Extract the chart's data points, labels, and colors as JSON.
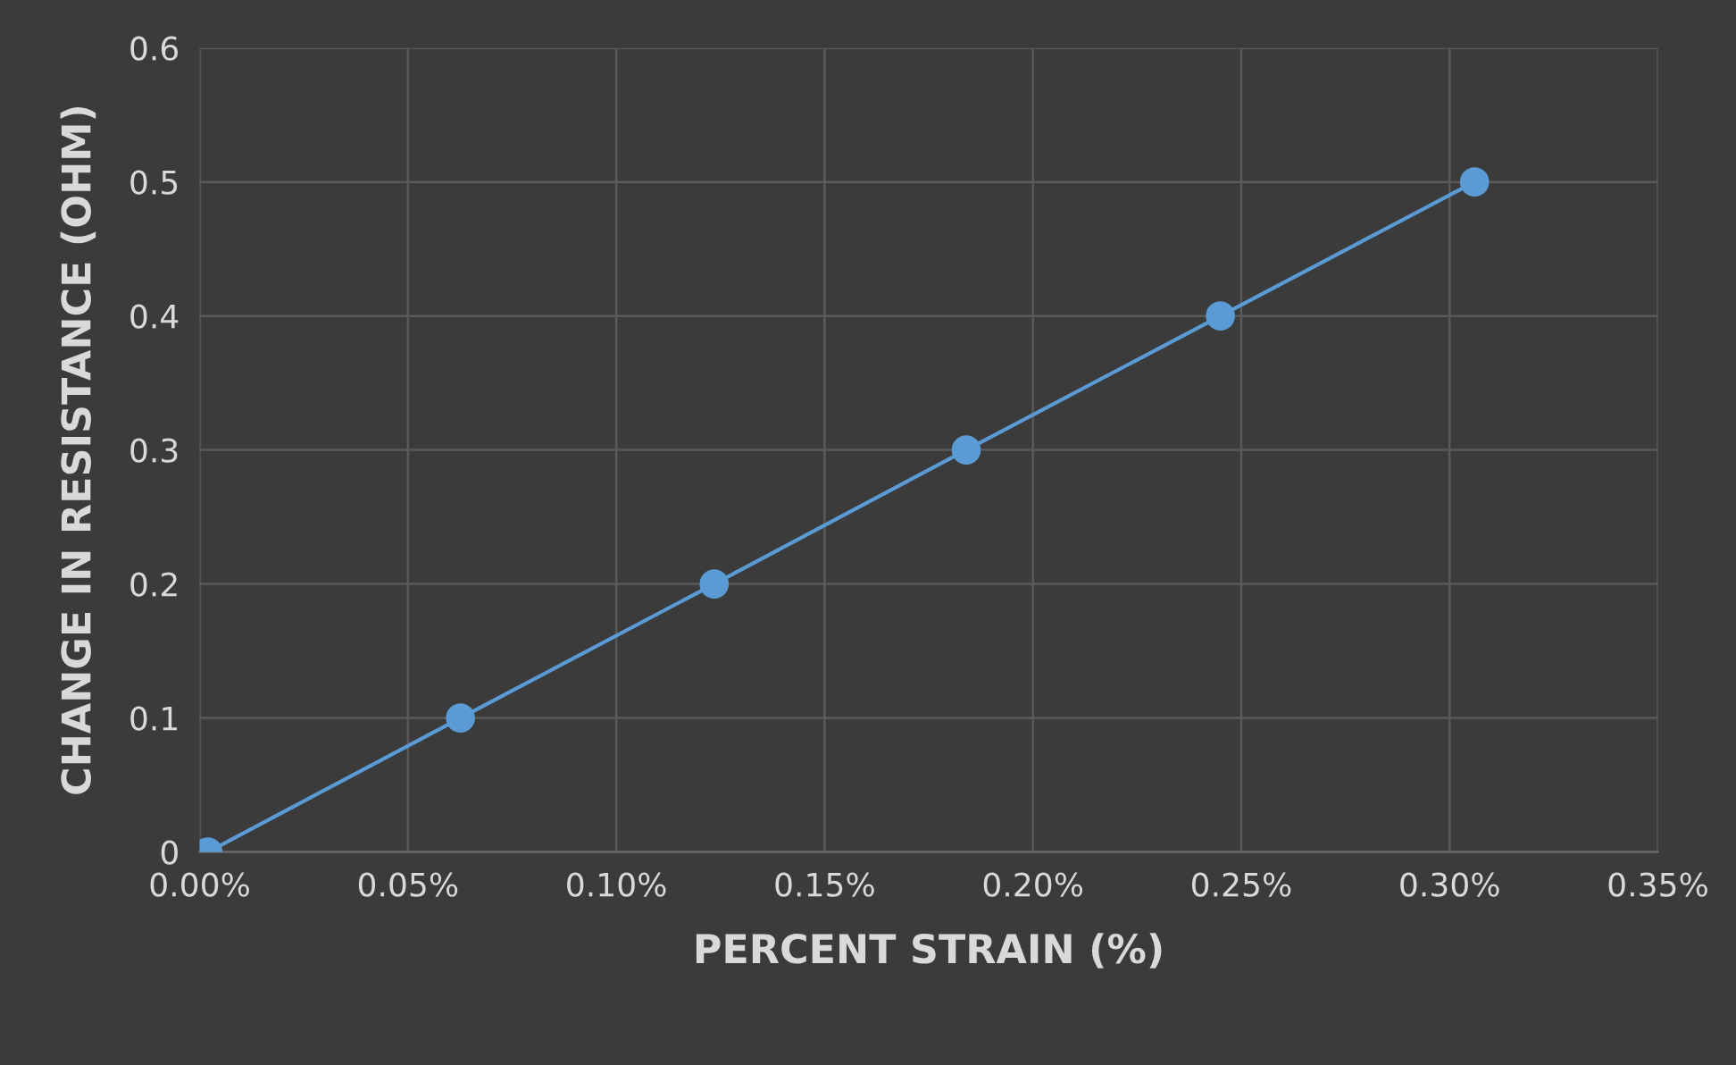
{
  "chart_data": {
    "type": "line",
    "xlabel": "PERCENT STRAIN (%)",
    "ylabel": "CHANGE IN RESISTANCE (OHM)",
    "x": [
      0.002,
      0.0626,
      0.1235,
      0.184,
      0.245,
      0.306
    ],
    "series": [
      {
        "color": "#5b9bd5",
        "values": [
          0,
          0.1,
          0.2,
          0.3,
          0.4,
          0.5
        ]
      }
    ],
    "xlim": [
      0,
      0.35
    ],
    "xticks": [
      {
        "value": 0,
        "label": "0.00%"
      },
      {
        "value": 0.05,
        "label": "0.05%"
      },
      {
        "value": 0.1,
        "label": "0.10%"
      },
      {
        "value": 0.15,
        "label": "0.15%"
      },
      {
        "value": 0.2,
        "label": "0.20%"
      },
      {
        "value": 0.25,
        "label": "0.25%"
      },
      {
        "value": 0.3,
        "label": "0.30%"
      },
      {
        "value": 0.35,
        "label": "0.35%"
      }
    ],
    "ylim": [
      0,
      0.6
    ],
    "yticks": [
      0,
      0.1,
      0.2,
      0.3,
      0.4,
      0.5,
      0.6
    ],
    "grid": true,
    "marker": "circle",
    "line_style": "solid"
  }
}
